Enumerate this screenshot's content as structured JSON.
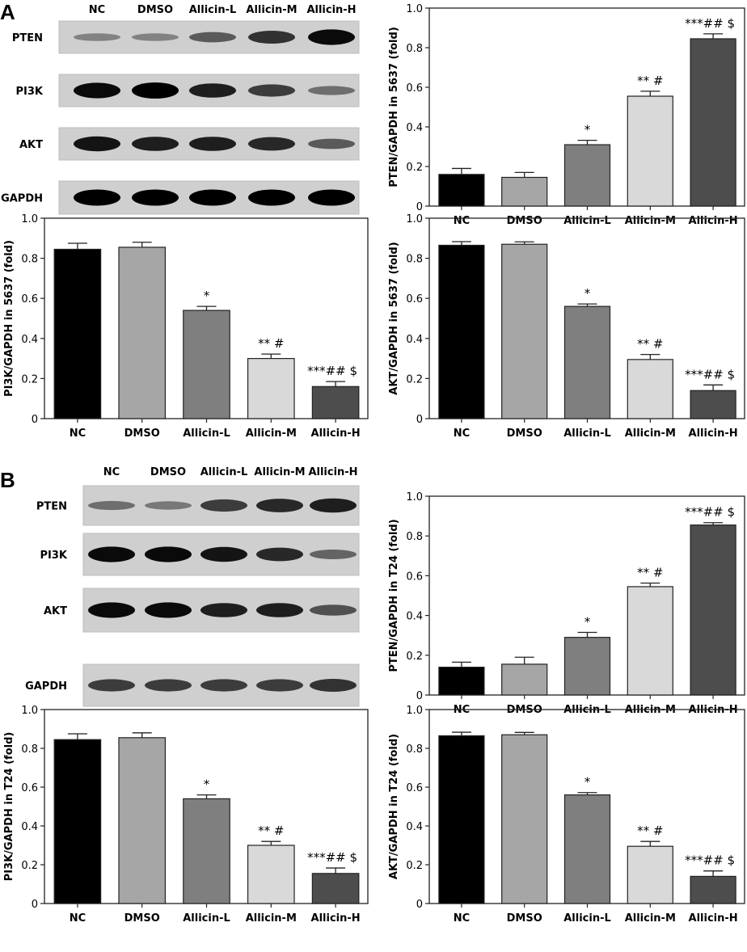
{
  "panels": {
    "a": "A",
    "b": "B"
  },
  "blots": [
    {
      "panel": "A",
      "lanes": [
        "NC",
        "DMSO",
        "Allicin-L",
        "Allicin-M",
        "Allicin-H"
      ],
      "proteins": [
        {
          "name": "PTEN",
          "intensity": [
            0.35,
            0.35,
            0.55,
            0.75,
            0.95
          ]
        },
        {
          "name": "PI3K",
          "intensity": [
            0.95,
            1.0,
            0.85,
            0.7,
            0.45
          ]
        },
        {
          "name": "AKT",
          "intensity": [
            0.9,
            0.85,
            0.85,
            0.8,
            0.55
          ]
        },
        {
          "name": "GAPDH",
          "intensity": [
            1,
            1,
            1,
            1,
            1
          ]
        }
      ]
    },
    {
      "panel": "B",
      "lanes": [
        "NC",
        "DMSO",
        "Allicin-L",
        "Allicin-M",
        "Allicin-H"
      ],
      "proteins": [
        {
          "name": "PTEN",
          "intensity": [
            0.45,
            0.4,
            0.7,
            0.8,
            0.85
          ]
        },
        {
          "name": "PI3K",
          "intensity": [
            0.95,
            0.95,
            0.9,
            0.8,
            0.5
          ]
        },
        {
          "name": "AKT",
          "intensity": [
            0.95,
            0.95,
            0.85,
            0.85,
            0.6
          ]
        },
        {
          "name": "GAPDH",
          "intensity": [
            0.7,
            0.7,
            0.7,
            0.7,
            0.75
          ]
        }
      ]
    }
  ],
  "colors": {
    "NC": "#000000",
    "DMSO": "#a6a6a6",
    "Allicin-L": "#7f7f7f",
    "Allicin-M": "#d9d9d9",
    "Allicin-H": "#4d4d4d"
  },
  "chart_data": [
    {
      "type": "bar",
      "id": "pten-5637",
      "ylabel": "PTEN/GAPDH in 5637 (fold)",
      "categories": [
        "NC",
        "DMSO",
        "Allicin-L",
        "Allicin-M",
        "Allicin-H"
      ],
      "values": [
        0.16,
        0.145,
        0.31,
        0.555,
        0.845
      ],
      "errors": [
        0.03,
        0.025,
        0.022,
        0.025,
        0.025
      ],
      "annotations": [
        "",
        "",
        "*",
        "** #",
        "***## $"
      ],
      "ylim": [
        0,
        1.0
      ],
      "yticks": [
        "0",
        "0.2",
        "0.4",
        "0.6",
        "0.8",
        "1.0"
      ]
    },
    {
      "type": "bar",
      "id": "pi3k-5637",
      "ylabel": "PI3K/GAPDH in 5637 (fold)",
      "categories": [
        "NC",
        "DMSO",
        "Allicin-L",
        "Allicin-M",
        "Allicin-H"
      ],
      "values": [
        0.845,
        0.855,
        0.54,
        0.3,
        0.16
      ],
      "errors": [
        0.03,
        0.025,
        0.02,
        0.022,
        0.025
      ],
      "annotations": [
        "",
        "",
        "*",
        "** #",
        "***## $"
      ],
      "ylim": [
        0,
        1.0
      ],
      "yticks": [
        "0",
        "0.2",
        "0.4",
        "0.6",
        "0.8",
        "1.0"
      ]
    },
    {
      "type": "bar",
      "id": "akt-5637",
      "ylabel": "AKT/GAPDH in 5637 (fold)",
      "categories": [
        "NC",
        "DMSO",
        "Allicin-L",
        "Allicin-M",
        "Allicin-H"
      ],
      "values": [
        0.865,
        0.87,
        0.56,
        0.295,
        0.14
      ],
      "errors": [
        0.018,
        0.012,
        0.012,
        0.025,
        0.028
      ],
      "annotations": [
        "",
        "",
        "*",
        "** #",
        "***## $"
      ],
      "ylim": [
        0,
        1.0
      ],
      "yticks": [
        "0",
        "0.2",
        "0.4",
        "0.6",
        "0.8",
        "1.0"
      ]
    },
    {
      "type": "bar",
      "id": "pten-t24",
      "ylabel": "PTEN/GAPDH in T24 (fold)",
      "categories": [
        "NC",
        "DMSO",
        "Allicin-L",
        "Allicin-M",
        "Allicin-H"
      ],
      "values": [
        0.14,
        0.155,
        0.29,
        0.545,
        0.855
      ],
      "errors": [
        0.025,
        0.035,
        0.025,
        0.018,
        0.012
      ],
      "annotations": [
        "",
        "",
        "*",
        "** #",
        "***## $"
      ],
      "ylim": [
        0,
        1.0
      ],
      "yticks": [
        "0",
        "0.2",
        "0.4",
        "0.6",
        "0.8",
        "1.0"
      ]
    },
    {
      "type": "bar",
      "id": "pi3k-t24",
      "ylabel": "PI3K/GAPDH in T24 (fold)",
      "categories": [
        "NC",
        "DMSO",
        "Allicin-L",
        "Allicin-M",
        "Allicin-H"
      ],
      "values": [
        0.845,
        0.855,
        0.54,
        0.3,
        0.155
      ],
      "errors": [
        0.03,
        0.025,
        0.02,
        0.02,
        0.028
      ],
      "annotations": [
        "",
        "",
        "*",
        "** #",
        "***## $"
      ],
      "ylim": [
        0,
        1.0
      ],
      "yticks": [
        "0",
        "0.2",
        "0.4",
        "0.6",
        "0.8",
        "1.0"
      ]
    },
    {
      "type": "bar",
      "id": "akt-t24",
      "ylabel": "AKT/GAPDH in T24 (fold)",
      "categories": [
        "NC",
        "DMSO",
        "Allicin-L",
        "Allicin-M",
        "Allicin-H"
      ],
      "values": [
        0.865,
        0.87,
        0.56,
        0.295,
        0.14
      ],
      "errors": [
        0.018,
        0.012,
        0.012,
        0.025,
        0.028
      ],
      "annotations": [
        "",
        "",
        "*",
        "** #",
        "***## $"
      ],
      "ylim": [
        0,
        1.0
      ],
      "yticks": [
        "0",
        "0.2",
        "0.4",
        "0.6",
        "0.8",
        "1.0"
      ]
    }
  ]
}
